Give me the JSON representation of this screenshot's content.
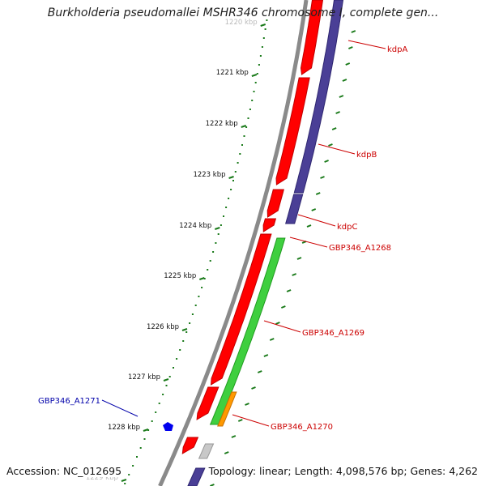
{
  "title": "Burkholderia pseudomallei MSHR346 chromosome I, complete gen...",
  "footer": {
    "accession": "Accession: NC_012695",
    "summary": "Topology: linear; Length: 4,098,576 bp; Genes: 4,262"
  },
  "colors": {
    "backbone": "#8a8a8a",
    "forward_gene": "#ff0000",
    "forward_gene_dark": "#c00000",
    "reverse_gene": "#4a3f96",
    "green_gene": "#3fcf3f",
    "orange_gene": "#ff9900",
    "small_blue_gene": "#0000ee",
    "grey_gene": "#c8c8c8",
    "ruler": "#1a7a1a",
    "label_red": "#cc0000",
    "label_blue": "#0000aa"
  },
  "ruler": {
    "unit": "kbp",
    "ticks": [
      "1220 kbp",
      "1221 kbp",
      "1222 kbp",
      "1223 kbp",
      "1224 kbp",
      "1225 kbp",
      "1226 kbp",
      "1227 kbp",
      "1228 kbp",
      "1229 kbp"
    ]
  },
  "gene_labels": [
    {
      "id": "kdpA",
      "text": "kdpA",
      "color": "red"
    },
    {
      "id": "kdpB",
      "text": "kdpB",
      "color": "red"
    },
    {
      "id": "kdpC",
      "text": "kdpC",
      "color": "red"
    },
    {
      "id": "gbp346-a1268",
      "text": "GBP346_A1268",
      "color": "red"
    },
    {
      "id": "gbp346-a1269",
      "text": "GBP346_A1269",
      "color": "red"
    },
    {
      "id": "gbp346-a1270",
      "text": "GBP346_A1270",
      "color": "red"
    },
    {
      "id": "gbp346-a1271",
      "text": "GBP346_A1271",
      "color": "blue"
    }
  ]
}
